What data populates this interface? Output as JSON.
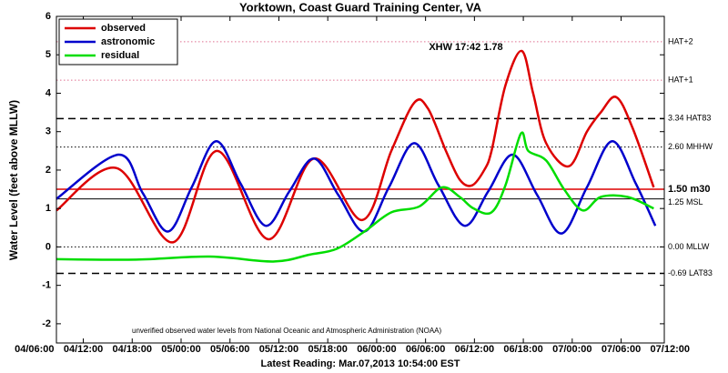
{
  "chart_data": {
    "type": "line",
    "title": "Yorktown, Coast Guard Training Center, VA",
    "x_label": "Latest Reading: Mar.07,2013 10:54:00 EST",
    "y_label": "Water Level (feet above MLLW)",
    "annotation": "XHW 17:42 1.78",
    "footnote": "unverified observed water levels from National Oceanic and Atmospheric Administration (NOAA)",
    "xlim": [
      8.7,
      83.3
    ],
    "xticks": [
      {
        "value": 6,
        "label": "04/06:00"
      },
      {
        "value": 12,
        "label": "04/12:00"
      },
      {
        "value": 18,
        "label": "04/18:00"
      },
      {
        "value": 24,
        "label": "05/00:00"
      },
      {
        "value": 30,
        "label": "05/06:00"
      },
      {
        "value": 36,
        "label": "05/12:00"
      },
      {
        "value": 42,
        "label": "05/18:00"
      },
      {
        "value": 48,
        "label": "06/00:00"
      },
      {
        "value": 54,
        "label": "06/06:00"
      },
      {
        "value": 60,
        "label": "06/12:00"
      },
      {
        "value": 66,
        "label": "06/18:00"
      },
      {
        "value": 72,
        "label": "07/00:00"
      },
      {
        "value": 78,
        "label": "07/06:00"
      },
      {
        "value": 84,
        "label": "07/12:00"
      }
    ],
    "ylim": [
      -2.5,
      6
    ],
    "yticks": [
      -2,
      -1,
      0,
      1,
      2,
      3,
      4,
      5,
      6
    ],
    "legend": "upper left",
    "reference_lines": [
      {
        "value": 5.34,
        "label": "HAT+2",
        "color": "#e07090",
        "dash": "dotted"
      },
      {
        "value": 4.34,
        "label": "HAT+1",
        "color": "#e07090",
        "dash": "dotted"
      },
      {
        "value": 3.34,
        "label": "3.34 HAT83",
        "color": "#000000",
        "dash": "dashed"
      },
      {
        "value": 2.6,
        "label": "2.60 MHHW",
        "color": "#000000",
        "dash": "dotted"
      },
      {
        "value": 1.5,
        "label": "1.50 m30",
        "color": "#dd0000",
        "dash": "solid"
      },
      {
        "value": 1.25,
        "label": "1.25 MSL",
        "color": "#000000",
        "dash": "solid"
      },
      {
        "value": 0,
        "label": "0.00 MLLW",
        "color": "#000000",
        "dash": "dotted"
      },
      {
        "value": -0.69,
        "label": "-0.69 LAT83",
        "color": "#000000",
        "dash": "dashed"
      }
    ],
    "series": [
      {
        "name": "observed",
        "color": "#dd0000",
        "x": [
          8.7,
          16.1,
          23.0,
          28.4,
          34.7,
          40.3,
          46.2,
          49.8,
          52.6,
          54.3,
          56.5,
          58.2,
          59.7,
          61.2,
          62.1,
          63.8,
          65.8,
          67.2,
          68.8,
          71.6,
          73.8,
          75.5,
          77.4,
          79.4,
          82.0
        ],
        "values": [
          0.95,
          2.05,
          0.12,
          2.5,
          0.2,
          2.3,
          0.7,
          2.5,
          3.75,
          3.6,
          2.5,
          1.75,
          1.6,
          2.0,
          2.5,
          4.2,
          5.1,
          4.0,
          2.7,
          2.1,
          3.0,
          3.5,
          3.9,
          3.1,
          1.55
        ]
      },
      {
        "name": "astronomic",
        "color": "#0000cc",
        "x": [
          8.7,
          16.3,
          19.3,
          22.4,
          25.3,
          28.3,
          31.3,
          34.4,
          37.3,
          40.3,
          43.3,
          46.5,
          49.5,
          52.6,
          55.6,
          58.8,
          61.7,
          64.7,
          67.7,
          70.7,
          73.8,
          76.9,
          79.8,
          82.2
        ],
        "values": [
          1.25,
          2.4,
          1.4,
          0.4,
          1.55,
          2.75,
          1.65,
          0.55,
          1.45,
          2.3,
          1.35,
          0.4,
          1.55,
          2.7,
          1.6,
          0.55,
          1.45,
          2.4,
          1.35,
          0.35,
          1.55,
          2.75,
          1.65,
          0.55
        ]
      },
      {
        "name": "residual",
        "color": "#00dd00",
        "x": [
          8.7,
          18.5,
          27.5,
          35.3,
          39.8,
          43.1,
          46.5,
          49.8,
          53.2,
          56.0,
          58.2,
          59.9,
          62.1,
          63.8,
          65.7,
          66.6,
          68.8,
          71.0,
          73.3,
          75.5,
          78.8,
          82.0
        ],
        "values": [
          -0.32,
          -0.33,
          -0.25,
          -0.38,
          -0.2,
          -0.05,
          0.4,
          0.9,
          1.05,
          1.55,
          1.3,
          1.0,
          0.9,
          1.6,
          2.95,
          2.5,
          2.25,
          1.5,
          0.95,
          1.3,
          1.3,
          1.0
        ]
      }
    ]
  }
}
